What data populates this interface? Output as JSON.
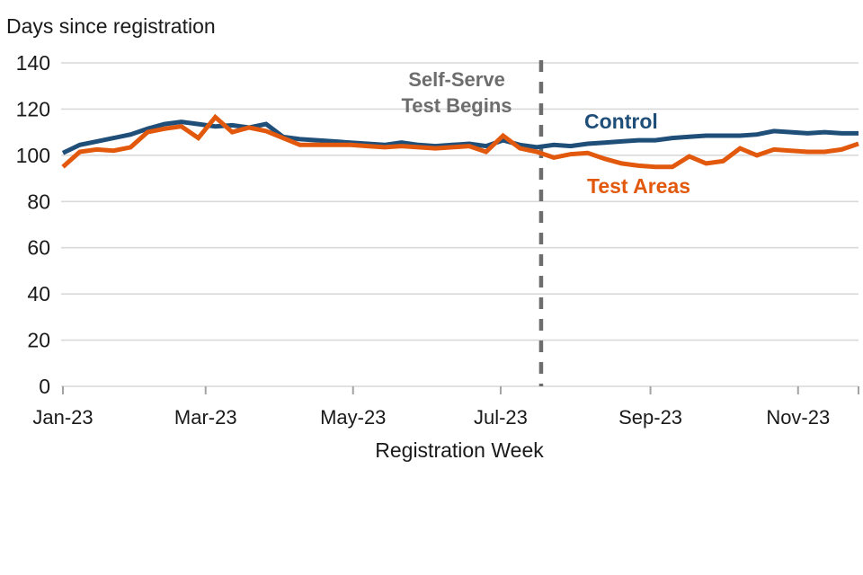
{
  "chart_data": {
    "type": "line",
    "title": "Days since registration",
    "xlabel": "Registration Week",
    "ylim": [
      0,
      140
    ],
    "yticks": [
      0,
      20,
      40,
      60,
      80,
      100,
      120,
      140
    ],
    "grid": true,
    "legend_position": "inline-labels-on-plot",
    "xticks": [
      {
        "label": "Jan-23",
        "week": 0
      },
      {
        "label": "Mar-23",
        "week": 8.43
      },
      {
        "label": "May-23",
        "week": 17.14
      },
      {
        "label": "Jul-23",
        "week": 25.86
      },
      {
        "label": "Sep-23",
        "week": 34.71
      },
      {
        "label": "Nov-23",
        "week": 43.43
      }
    ],
    "series": [
      {
        "name": "Control",
        "color": "#1F4E79",
        "values": [
          101,
          104.5,
          106,
          107.5,
          109,
          111.5,
          113.5,
          114.5,
          113.5,
          112.5,
          113,
          112,
          113.5,
          108,
          107,
          106.5,
          106,
          105.5,
          105,
          104.5,
          105.5,
          104.5,
          104,
          104.5,
          105,
          104,
          106.5,
          104.5,
          103.5,
          104.5,
          104,
          105,
          105.5,
          106,
          106.5,
          106.5,
          107.5,
          108,
          108.5,
          108.5,
          108.5,
          109,
          110.5,
          110,
          109.5,
          110,
          109.5,
          109.5
        ]
      },
      {
        "name": "Test Areas",
        "color": "#E2580C",
        "values": [
          95,
          101.5,
          102.5,
          102,
          103.5,
          110,
          111.5,
          112.5,
          107.5,
          116.5,
          110,
          112,
          110.5,
          107.5,
          104.5,
          104.5,
          104.5,
          104.5,
          104,
          103.5,
          104,
          103.5,
          103,
          103.5,
          104,
          101.5,
          108.5,
          103,
          101.5,
          99,
          100.5,
          101,
          98.5,
          96.5,
          95.5,
          95,
          95,
          99.5,
          96.5,
          97.5,
          103,
          100,
          102.5,
          102,
          101.5,
          101.5,
          102.5,
          105
        ]
      }
    ],
    "annotation": {
      "line1": "Self-Serve",
      "line2": "Test Begins",
      "color": "#6D6D6D",
      "vline_week": 28.25
    },
    "colors": {
      "gridline": "#D9D9D9",
      "axis": "#D0D0D0",
      "tick": "#A3A3A3",
      "text": "#1A1A1A"
    }
  }
}
